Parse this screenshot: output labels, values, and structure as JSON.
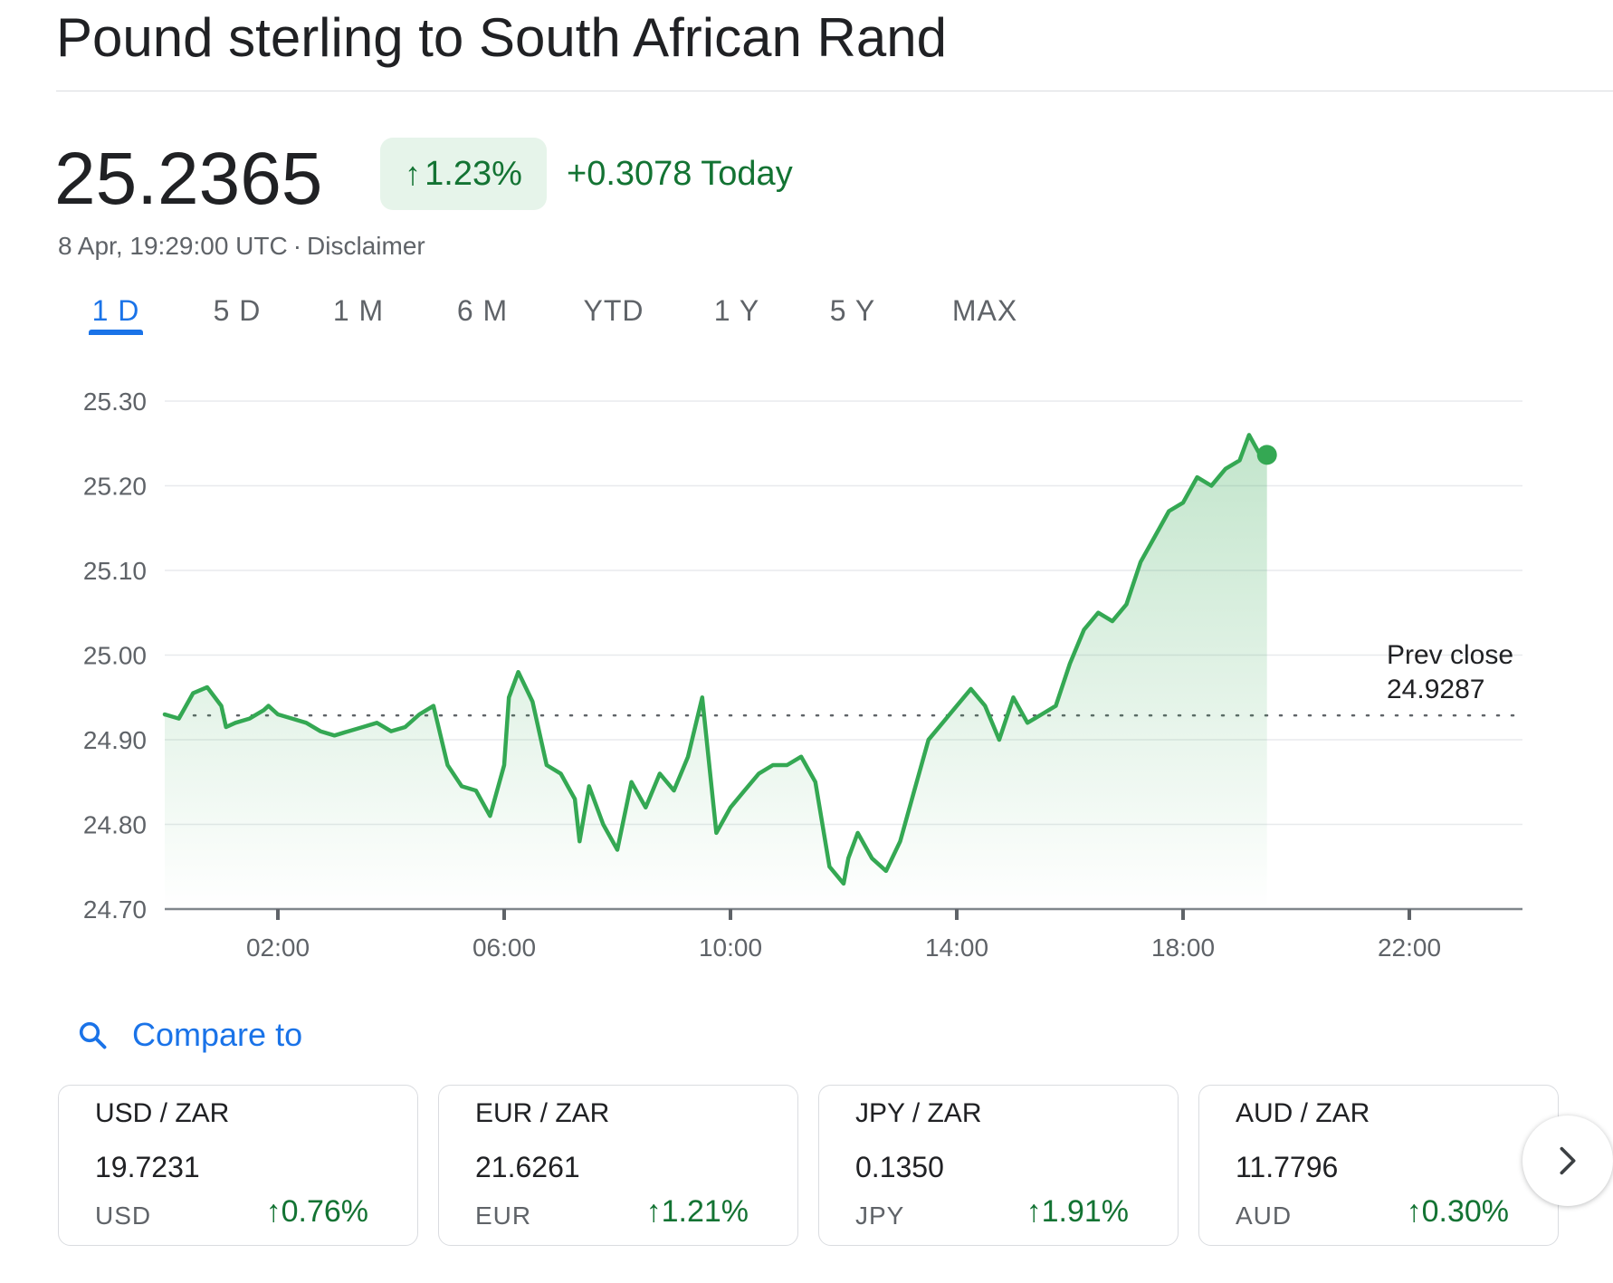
{
  "header": {
    "title": "Pound sterling to South African Rand"
  },
  "quote": {
    "price": "25.2365",
    "change_pct": "1.23%",
    "change_abs": "+0.3078 Today",
    "timestamp": "8 Apr, 19:29:00 UTC",
    "separator": "·",
    "disclaimer": "Disclaimer",
    "up_color": "#137333",
    "up_bg_color": "#e6f4ea"
  },
  "tabs": {
    "items": [
      {
        "label": "1 D",
        "active": true
      },
      {
        "label": "5 D",
        "active": false
      },
      {
        "label": "1 M",
        "active": false
      },
      {
        "label": "6 M",
        "active": false
      },
      {
        "label": "YTD",
        "active": false
      },
      {
        "label": "1 Y",
        "active": false
      },
      {
        "label": "5 Y",
        "active": false
      },
      {
        "label": "MAX",
        "active": false
      }
    ],
    "active_color": "#1a73e8"
  },
  "chart_data": {
    "type": "area",
    "title": "",
    "xlabel": "",
    "ylabel": "",
    "x_ticks": [
      "02:00",
      "06:00",
      "10:00",
      "14:00",
      "18:00",
      "22:00"
    ],
    "y_ticks": [
      "25.30",
      "25.20",
      "25.10",
      "25.00",
      "24.90",
      "24.80",
      "24.70"
    ],
    "xlim_hours": [
      0,
      24
    ],
    "ylim": [
      24.7,
      25.3
    ],
    "grid": true,
    "prev_close": {
      "label": "Prev close",
      "value": "24.9287"
    },
    "line_color": "#34a853",
    "series": [
      {
        "x": [
          "00:00",
          "00:15",
          "00:30",
          "00:45",
          "01:00",
          "01:05",
          "01:15",
          "01:30",
          "01:45",
          "01:50",
          "02:00",
          "02:15",
          "02:30",
          "02:45",
          "03:00",
          "03:15",
          "03:30",
          "03:45",
          "04:00",
          "04:15",
          "04:30",
          "04:45",
          "05:00",
          "05:15",
          "05:30",
          "05:45",
          "06:00",
          "06:05",
          "06:15",
          "06:30",
          "06:45",
          "07:00",
          "07:15",
          "07:20",
          "07:30",
          "07:45",
          "08:00",
          "08:15",
          "08:30",
          "08:45",
          "09:00",
          "09:15",
          "09:30",
          "09:45",
          "10:00",
          "10:15",
          "10:30",
          "10:45",
          "11:00",
          "11:15",
          "11:30",
          "11:45",
          "12:00",
          "12:05",
          "12:15",
          "12:30",
          "12:45",
          "13:00",
          "13:15",
          "13:30",
          "13:45",
          "14:00",
          "14:15",
          "14:30",
          "14:45",
          "15:00",
          "15:15",
          "15:30",
          "15:45",
          "16:00",
          "16:15",
          "16:30",
          "16:45",
          "17:00",
          "17:15",
          "17:30",
          "17:45",
          "18:00",
          "18:15",
          "18:30",
          "18:45",
          "19:00",
          "19:10",
          "19:20",
          "19:29"
        ],
        "y": [
          24.93,
          24.925,
          24.955,
          24.962,
          24.94,
          24.915,
          24.92,
          24.925,
          24.935,
          24.94,
          24.93,
          24.925,
          24.92,
          24.91,
          24.905,
          24.91,
          24.915,
          24.92,
          24.91,
          24.915,
          24.93,
          24.94,
          24.87,
          24.845,
          24.84,
          24.81,
          24.87,
          24.95,
          24.98,
          24.945,
          24.87,
          24.86,
          24.83,
          24.78,
          24.845,
          24.8,
          24.77,
          24.85,
          24.82,
          24.86,
          24.84,
          24.88,
          24.95,
          24.79,
          24.82,
          24.84,
          24.86,
          24.87,
          24.87,
          24.88,
          24.85,
          24.75,
          24.73,
          24.76,
          24.79,
          24.76,
          24.745,
          24.78,
          24.84,
          24.9,
          24.92,
          24.94,
          24.96,
          24.94,
          24.9,
          24.95,
          24.92,
          24.93,
          24.94,
          24.99,
          25.03,
          25.05,
          25.04,
          25.06,
          25.11,
          25.14,
          25.17,
          25.18,
          25.21,
          25.2,
          25.22,
          25.23,
          25.26,
          25.24,
          25.2365
        ]
      }
    ]
  },
  "compare": {
    "label": "Compare to"
  },
  "cards": [
    {
      "pair": "USD / ZAR",
      "rate": "19.7231",
      "currency": "USD",
      "change": "0.76%"
    },
    {
      "pair": "EUR / ZAR",
      "rate": "21.6261",
      "currency": "EUR",
      "change": "1.21%"
    },
    {
      "pair": "JPY / ZAR",
      "rate": "0.1350",
      "currency": "JPY",
      "change": "1.91%"
    },
    {
      "pair": "AUD / ZAR",
      "rate": "11.7796",
      "currency": "AUD",
      "change": "0.30%"
    }
  ],
  "icons": {
    "search": "search-icon",
    "arrow_up": "arrow-up-icon",
    "next": "chevron-right-icon"
  }
}
